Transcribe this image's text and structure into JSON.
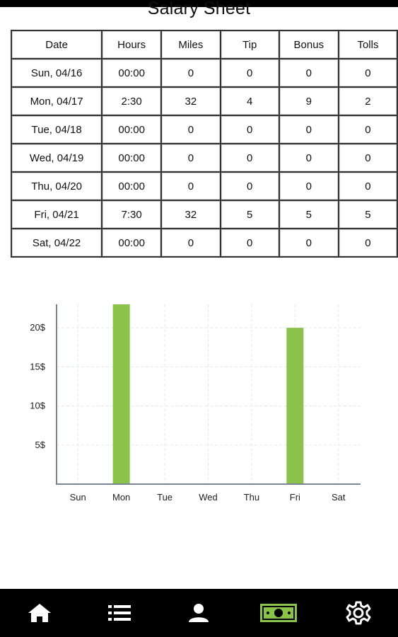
{
  "page": {
    "title": "Salary Sheet"
  },
  "table": {
    "columns": [
      "Date",
      "Hours",
      "Miles",
      "Tip",
      "Bonus",
      "Tolls"
    ],
    "rows": [
      [
        "Sun, 04/16",
        "00:00",
        "0",
        "0",
        "0",
        "0"
      ],
      [
        "Mon, 04/17",
        "2:30",
        "32",
        "4",
        "9",
        "2"
      ],
      [
        "Tue, 04/18",
        "00:00",
        "0",
        "0",
        "0",
        "0"
      ],
      [
        "Wed, 04/19",
        "00:00",
        "0",
        "0",
        "0",
        "0"
      ],
      [
        "Thu, 04/20",
        "00:00",
        "0",
        "0",
        "0",
        "0"
      ],
      [
        "Fri, 04/21",
        "7:30",
        "32",
        "5",
        "5",
        "5"
      ],
      [
        "Sat, 04/22",
        "00:00",
        "0",
        "0",
        "0",
        "0"
      ]
    ]
  },
  "chart_data": {
    "type": "bar",
    "categories": [
      "Sun",
      "Mon",
      "Tue",
      "Wed",
      "Thu",
      "Fri",
      "Sat"
    ],
    "values": [
      0,
      23,
      0,
      0,
      0,
      20,
      0
    ],
    "ytick_labels": [
      "5$",
      "10$",
      "15$",
      "20$"
    ],
    "yticks": [
      5,
      10,
      15,
      20
    ],
    "ylim": [
      0,
      23
    ],
    "grid": true,
    "bar_color": "#8bc34a"
  },
  "nav": {
    "items": [
      {
        "name": "home",
        "icon": "home-icon",
        "active": false
      },
      {
        "name": "list",
        "icon": "list-icon",
        "active": false
      },
      {
        "name": "profile",
        "icon": "person-icon",
        "active": false
      },
      {
        "name": "salary",
        "icon": "money-icon",
        "active": true
      },
      {
        "name": "settings",
        "icon": "gear-icon",
        "active": false
      }
    ],
    "active_color": "#8bc34a",
    "icon_color": "#ffffff"
  }
}
